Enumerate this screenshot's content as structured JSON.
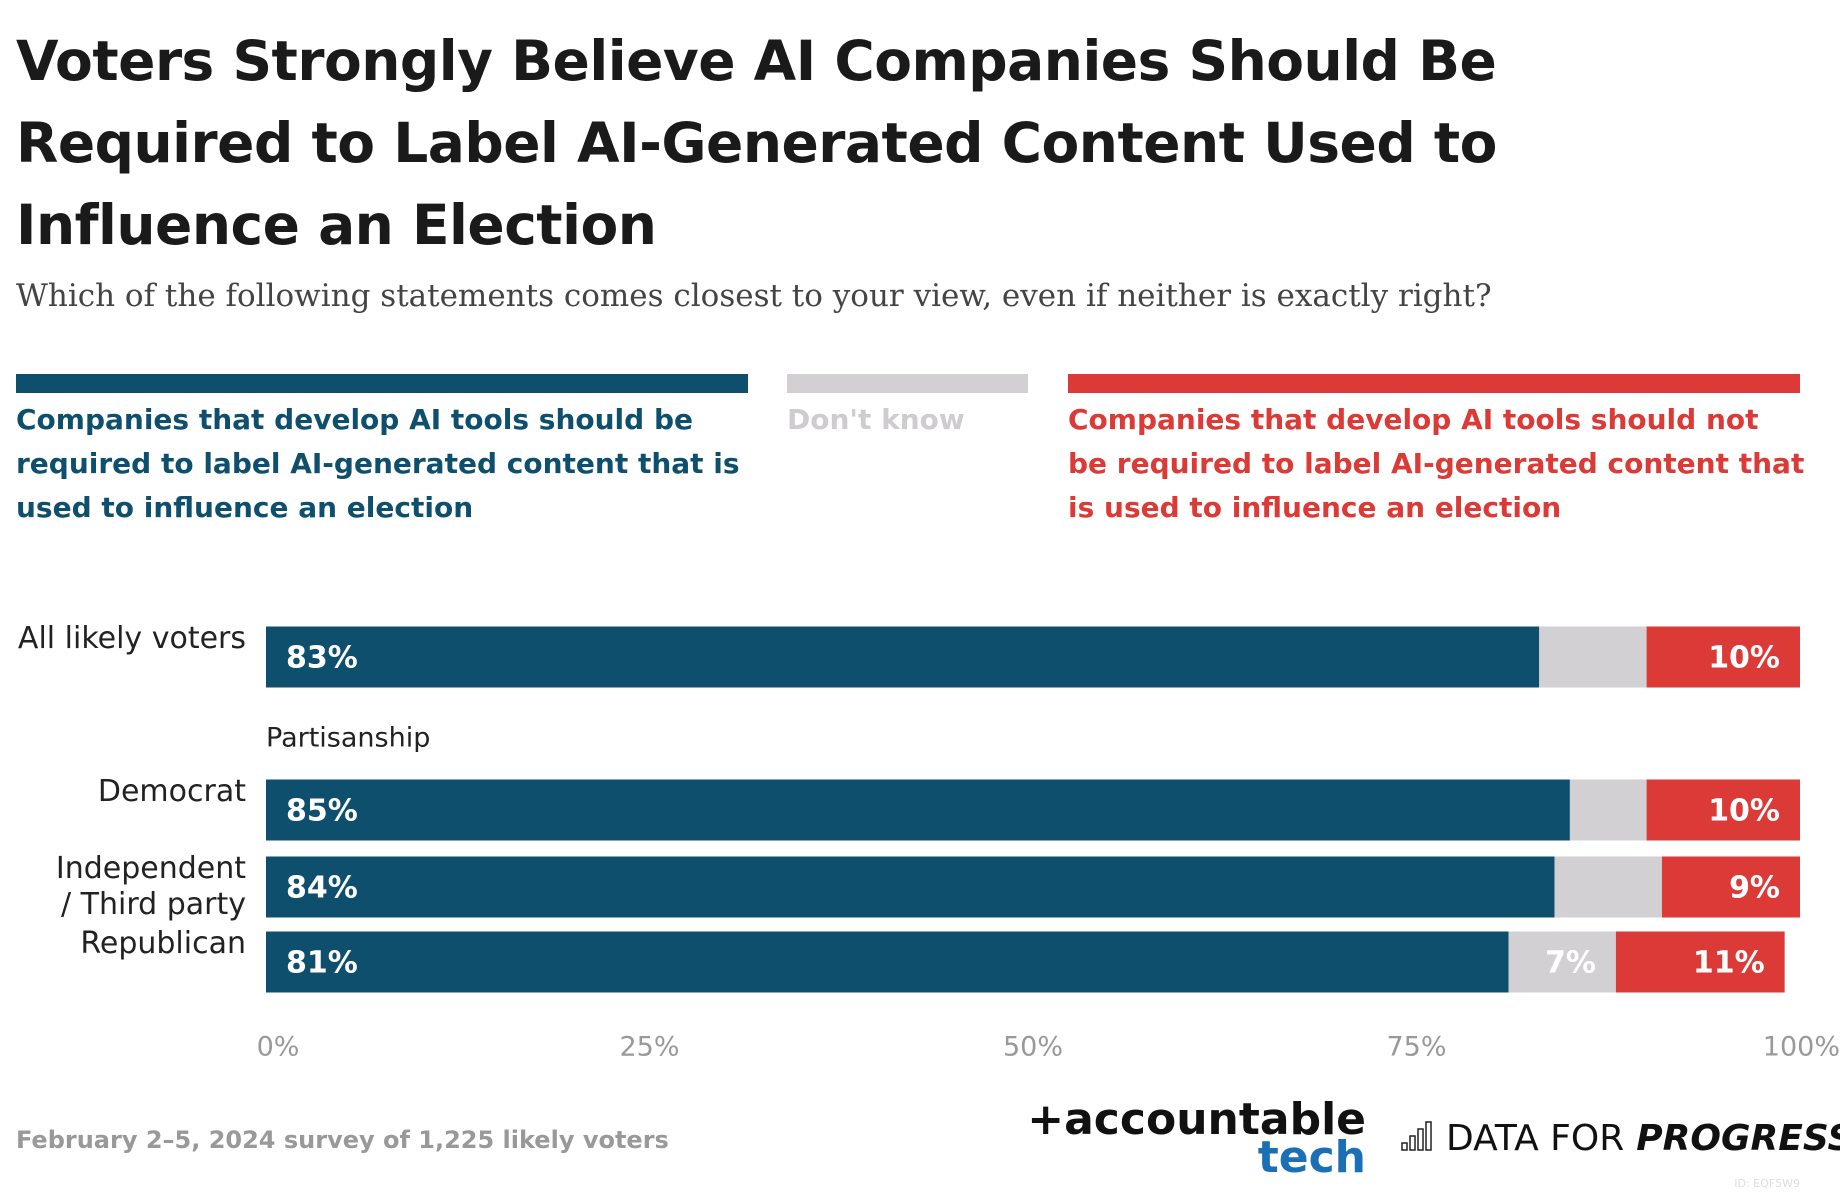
{
  "chart_data": {
    "type": "stacked_bar_horizontal",
    "title": "Voters Strongly Believe AI Companies Should Be Required to Label AI-Generated Content Used to Influence an Election",
    "subtitle": "Which of the following statements comes closest to your view, even if neither is exactly right?",
    "categories": [
      "All likely voters",
      "Democrat",
      "Independent / Third party",
      "Republican"
    ],
    "group_label": "Partisanship",
    "series": [
      {
        "name": "Companies that develop AI tools should be required to label AI-generated content that is used to influence an election",
        "color": "#0e4f6e",
        "values": [
          83,
          85,
          84,
          81
        ],
        "value_labels": [
          "83%",
          "85%",
          "84%",
          "81%"
        ]
      },
      {
        "name": "Don't know",
        "color": "#d3d0d3",
        "values": [
          7,
          5,
          7,
          7
        ],
        "value_labels": [
          null,
          null,
          null,
          "7%"
        ]
      },
      {
        "name": "Companies that develop AI tools should not be required to label AI-generated content that is used to influence an election",
        "color": "#dc3a36",
        "values": [
          10,
          10,
          9,
          11
        ],
        "value_labels": [
          "10%",
          "10%",
          "9%",
          "11%"
        ]
      }
    ],
    "xlim": [
      0,
      100
    ],
    "xticks": [
      {
        "value": 0,
        "label": "0%"
      },
      {
        "value": 25,
        "label": "25%"
      },
      {
        "value": 50,
        "label": "50%"
      },
      {
        "value": 75,
        "label": "75%"
      },
      {
        "value": 100,
        "label": "100%"
      }
    ],
    "source": "February 2–5, 2024 survey of 1,225 likely voters",
    "logo_1": "+accountable",
    "logo_1b": "tech",
    "logo_2": "DATA FOR",
    "logo_2b": "PROGRESS",
    "id_note": "ID: EQF5W9"
  }
}
